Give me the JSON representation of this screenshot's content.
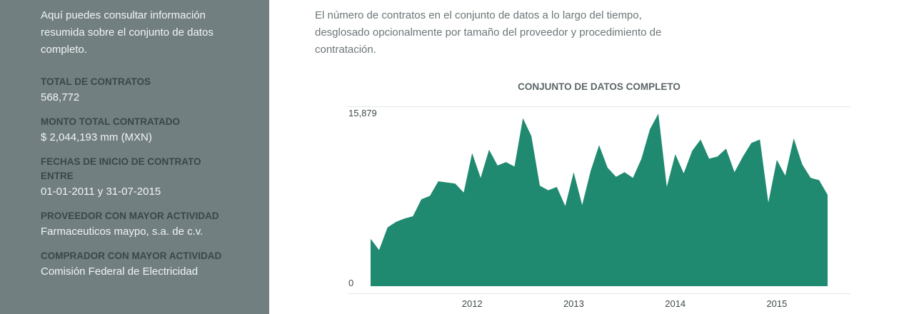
{
  "sidebar": {
    "intro": "Aquí puedes consultar información resumida sobre el conjunto de datos completo.",
    "stats": [
      {
        "label": "TOTAL DE CONTRATOS",
        "value": "568,772"
      },
      {
        "label": "MONTO TOTAL CONTRATADO",
        "value": "$ 2,044,193 mm (MXN)"
      },
      {
        "label": "FECHAS DE INICIO DE CONTRATO ENTRE",
        "value": "01-01-2011 y 31-07-2015"
      },
      {
        "label": "PROVEEDOR CON MAYOR ACTIVIDAD",
        "value": "Farmaceuticos maypo, s.a. de c.v."
      },
      {
        "label": "COMPRADOR CON MAYOR ACTIVIDAD",
        "value": "Comisión Federal de Electricidad"
      }
    ]
  },
  "main": {
    "description": "El número de contratos en el conjunto de datos a lo largo del tiempo, desglosado opcionalmente por tamaño del proveedor y procedimiento de contratación."
  },
  "colors": {
    "sidebar_bg": "#727f81",
    "area_fill": "#1f8a70"
  },
  "chart_data": {
    "type": "area",
    "title": "CONJUNTO DE DATOS COMPLETO",
    "xlabel": "",
    "ylabel": "",
    "y_tick_labels": [
      "0",
      "15,879"
    ],
    "ylim": [
      0,
      15879
    ],
    "x_tick_labels": [
      "2012",
      "2013",
      "2014",
      "2015"
    ],
    "x_start": "2011-01",
    "x_end": "2015-07",
    "grid": false,
    "legend": "none",
    "x": [
      "2011-01",
      "2011-02",
      "2011-03",
      "2011-04",
      "2011-05",
      "2011-06",
      "2011-07",
      "2011-08",
      "2011-09",
      "2011-10",
      "2011-11",
      "2011-12",
      "2012-01",
      "2012-02",
      "2012-03",
      "2012-04",
      "2012-05",
      "2012-06",
      "2012-07",
      "2012-08",
      "2012-09",
      "2012-10",
      "2012-11",
      "2012-12",
      "2013-01",
      "2013-02",
      "2013-03",
      "2013-04",
      "2013-05",
      "2013-06",
      "2013-07",
      "2013-08",
      "2013-09",
      "2013-10",
      "2013-11",
      "2013-12",
      "2014-01",
      "2014-02",
      "2014-03",
      "2014-04",
      "2014-05",
      "2014-06",
      "2014-07",
      "2014-08",
      "2014-09",
      "2014-10",
      "2014-11",
      "2014-12",
      "2015-01",
      "2015-02",
      "2015-03",
      "2015-04",
      "2015-05",
      "2015-06",
      "2015-07"
    ],
    "values": [
      4200,
      3200,
      5200,
      5700,
      6000,
      6200,
      7700,
      8000,
      9300,
      9200,
      9100,
      8300,
      11800,
      9600,
      12100,
      10700,
      11000,
      10600,
      14900,
      13300,
      8900,
      8500,
      8800,
      7100,
      10100,
      7200,
      10200,
      12500,
      10500,
      9700,
      10100,
      9600,
      11300,
      13900,
      15300,
      8800,
      11700,
      10000,
      12000,
      13000,
      11300,
      11500,
      12200,
      10100,
      11500,
      12700,
      13000,
      7400,
      11200,
      9800,
      13100,
      10800,
      9600,
      9400,
      8100
    ]
  }
}
